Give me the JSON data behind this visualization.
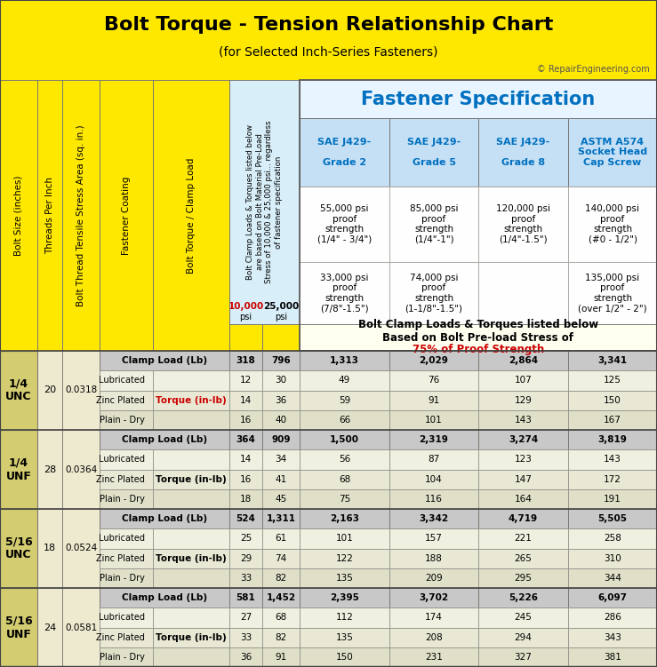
{
  "title": "Bolt Torque - Tension Relationship Chart",
  "subtitle": "(for Selected Inch-Series Fasteners)",
  "copyright": "© RepairEngineering.com",
  "title_bg": "#FFE800",
  "header_bg_blue": "#C5E0F5",
  "header_blue_dark": "#0070C0",
  "fastener_spec_title": "Fastener Specification",
  "grade_headers": [
    "SAE J429-\n\nGrade 2",
    "SAE J429-\n\nGrade 5",
    "SAE J429-\n\nGrade 8",
    "ASTM A574\nSocket Head\nCap Screw"
  ],
  "grade_desc1": [
    "55,000 psi\nproof\nstrength\n(1/4\" - 3/4\")",
    "85,000 psi\nproof\nstrength\n(1/4\"-1\")",
    "120,000 psi\nproof\nstrength\n(1/4\"-1.5\")",
    "140,000 psi\nproof\nstrength\n(#0 - 1/2\")"
  ],
  "grade_desc2": [
    "33,000 psi\nproof\nstrength\n(7/8\"-1.5\")",
    "74,000 psi\nproof\nstrength\n(1-1/8\"-1.5\")",
    "",
    "135,000 psi\nproof\nstrength\n(over 1/2\" - 2\")"
  ],
  "preload_line1": "Bolt Clamp Loads & Torques listed below",
  "preload_line2": "Based on Bolt Pre-load Stress of",
  "preload_line3": "75% of Proof Strength",
  "mid_col_text": "Bolt Clamp Loads & Torques listed below\nare based on Bolt Material Pre-Load\nStress of 10,000 & 25,000 psi... regardless\nof fastener specification",
  "left_col_labels": [
    "Bolt Size (inches)",
    "Threads Per Inch",
    "Bolt Thread Tensile Stress Area (sq. in.)",
    "Fastener Coating",
    "Bolt Torque / Clamp Load"
  ],
  "bolt_sections": [
    {
      "bolt_size": "1/4\nUNC",
      "tpi": "20",
      "stress_area": "0.0318",
      "clamp_vals": [
        "318",
        "796",
        "1,313",
        "2,029",
        "2,864",
        "3,341"
      ],
      "torque_rows": [
        {
          "coating": "Lubricated",
          "torque_label": "",
          "red": false,
          "vals": [
            "12",
            "30",
            "49",
            "76",
            "107",
            "125"
          ]
        },
        {
          "coating": "Zinc Plated",
          "torque_label": "Torque (in-lb)",
          "red": true,
          "vals": [
            "14",
            "36",
            "59",
            "91",
            "129",
            "150"
          ]
        },
        {
          "coating": "Plain - Dry",
          "torque_label": "",
          "red": false,
          "vals": [
            "16",
            "40",
            "66",
            "101",
            "143",
            "167"
          ]
        }
      ]
    },
    {
      "bolt_size": "1/4\nUNF",
      "tpi": "28",
      "stress_area": "0.0364",
      "clamp_vals": [
        "364",
        "909",
        "1,500",
        "2,319",
        "3,274",
        "3,819"
      ],
      "torque_rows": [
        {
          "coating": "Lubricated",
          "torque_label": "",
          "red": false,
          "vals": [
            "14",
            "34",
            "56",
            "87",
            "123",
            "143"
          ]
        },
        {
          "coating": "Zinc Plated",
          "torque_label": "Torque (in-lb)",
          "red": false,
          "vals": [
            "16",
            "41",
            "68",
            "104",
            "147",
            "172"
          ]
        },
        {
          "coating": "Plain - Dry",
          "torque_label": "",
          "red": false,
          "vals": [
            "18",
            "45",
            "75",
            "116",
            "164",
            "191"
          ]
        }
      ]
    },
    {
      "bolt_size": "5/16\nUNC",
      "tpi": "18",
      "stress_area": "0.0524",
      "clamp_vals": [
        "524",
        "1,311",
        "2,163",
        "3,342",
        "4,719",
        "5,505"
      ],
      "torque_rows": [
        {
          "coating": "Lubricated",
          "torque_label": "",
          "red": false,
          "vals": [
            "25",
            "61",
            "101",
            "157",
            "221",
            "258"
          ]
        },
        {
          "coating": "Zinc Plated",
          "torque_label": "Torque (in-lb)",
          "red": false,
          "vals": [
            "29",
            "74",
            "122",
            "188",
            "265",
            "310"
          ]
        },
        {
          "coating": "Plain - Dry",
          "torque_label": "",
          "red": false,
          "vals": [
            "33",
            "82",
            "135",
            "209",
            "295",
            "344"
          ]
        }
      ]
    },
    {
      "bolt_size": "5/16\nUNF",
      "tpi": "24",
      "stress_area": "0.0581",
      "clamp_vals": [
        "581",
        "1,452",
        "2,395",
        "3,702",
        "5,226",
        "6,097"
      ],
      "torque_rows": [
        {
          "coating": "Lubricated",
          "torque_label": "",
          "red": false,
          "vals": [
            "27",
            "68",
            "112",
            "174",
            "245",
            "286"
          ]
        },
        {
          "coating": "Zinc Plated",
          "torque_label": "Torque (in-lb)",
          "red": false,
          "vals": [
            "33",
            "82",
            "135",
            "208",
            "294",
            "343"
          ]
        },
        {
          "coating": "Plain - Dry",
          "torque_label": "",
          "red": false,
          "vals": [
            "36",
            "91",
            "150",
            "231",
            "327",
            "381"
          ]
        }
      ]
    }
  ]
}
